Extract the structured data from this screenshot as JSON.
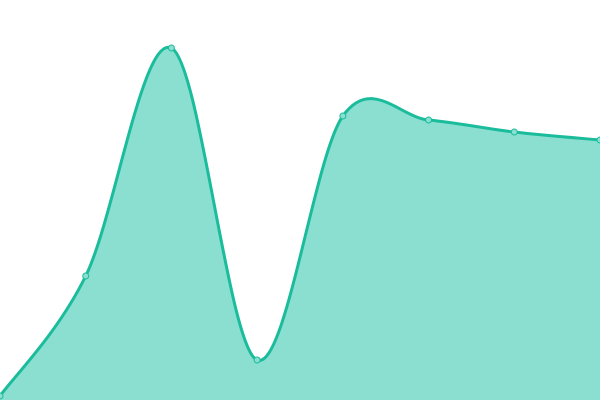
{
  "chart_data": {
    "type": "area",
    "x": [
      1,
      2,
      3,
      4,
      5,
      6,
      7,
      8
    ],
    "values": [
      1,
      31,
      88,
      10,
      71,
      70,
      67,
      65
    ],
    "ylim": [
      0,
      100
    ],
    "grid": false,
    "axes_visible": false,
    "smooth": true,
    "colors": {
      "line": "#1abc9c",
      "fill": "#8adfd0",
      "marker_fill": "#8adfd0",
      "marker_stroke": "#1abc9c"
    }
  }
}
